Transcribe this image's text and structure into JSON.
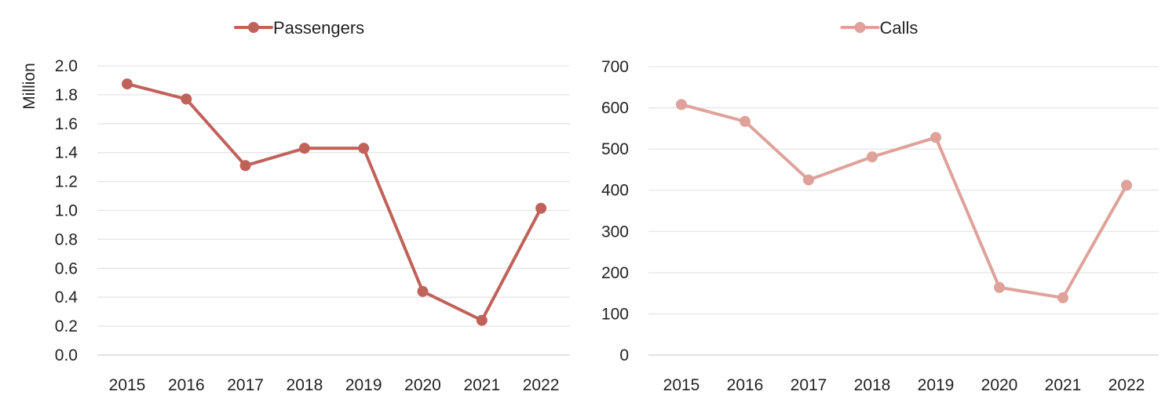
{
  "chart_data": [
    {
      "type": "line",
      "title": "",
      "xlabel": "",
      "ylabel": "Million",
      "ylim": [
        0,
        2.0
      ],
      "yticks": [
        "0.0",
        "0.2",
        "0.4",
        "0.6",
        "0.8",
        "1.0",
        "1.2",
        "1.4",
        "1.6",
        "1.8",
        "2.0"
      ],
      "categories": [
        "2015",
        "2016",
        "2017",
        "2018",
        "2019",
        "2020",
        "2021",
        "2022"
      ],
      "legend_position": "top-center",
      "grid": true,
      "series": [
        {
          "name": "Passengers",
          "color": "#c0625a",
          "values": [
            1.875,
            1.77,
            1.31,
            1.43,
            1.43,
            0.44,
            0.24,
            1.015
          ]
        }
      ]
    },
    {
      "type": "line",
      "title": "",
      "xlabel": "",
      "ylabel": "",
      "ylim": [
        0,
        700
      ],
      "yticks": [
        "0",
        "100",
        "200",
        "300",
        "400",
        "500",
        "600",
        "700"
      ],
      "categories": [
        "2015",
        "2016",
        "2017",
        "2018",
        "2019",
        "2020",
        "2021",
        "2022"
      ],
      "legend_position": "top-center",
      "grid": true,
      "series": [
        {
          "name": "Calls",
          "color": "#dfa29b",
          "values": [
            608,
            567,
            425,
            481,
            528,
            164,
            139,
            412
          ]
        }
      ]
    }
  ]
}
